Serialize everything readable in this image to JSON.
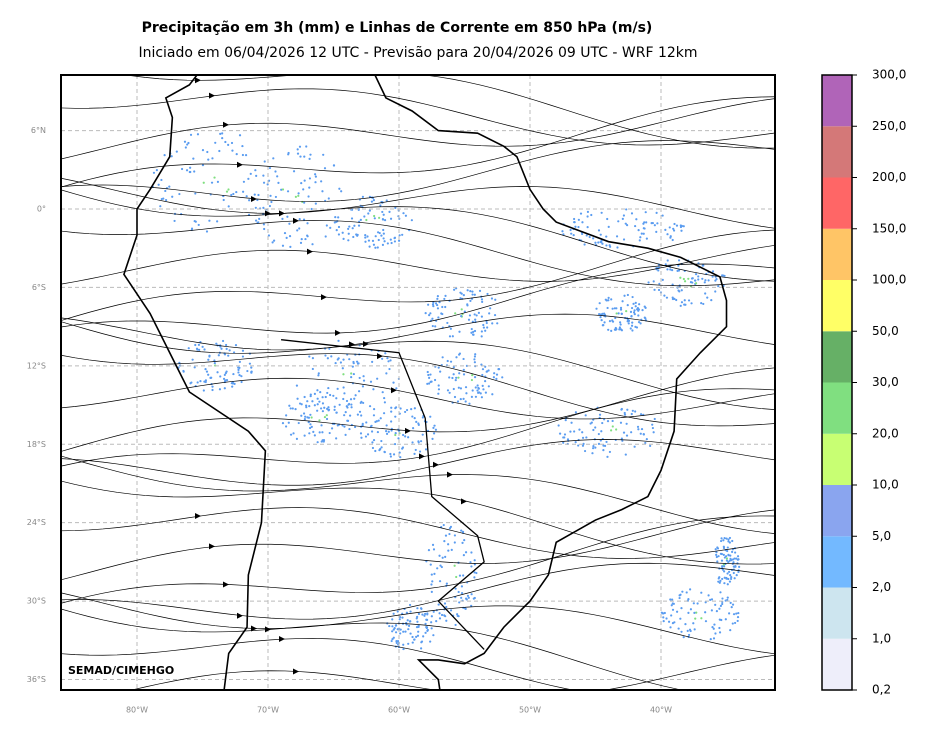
{
  "header": {
    "title": "Precipitação em 3h (mm) e Linhas de Corrente em 850 hPa (m/s)",
    "subtitle": "Iniciado em 06/04/2026 12 UTC - Previsão para 20/04/2026 09 UTC - WRF 12km"
  },
  "map": {
    "lat_labels": [
      "6°N",
      "0°",
      "6°S",
      "12°S",
      "18°S",
      "24°S",
      "30°S",
      "36°S"
    ],
    "lon_labels": [
      "80°W",
      "70°W",
      "60°W",
      "50°W",
      "40°W"
    ],
    "watermark": "SEMAD/CIMEHGO"
  },
  "colorbar": {
    "labels": [
      "0,2",
      "1,0",
      "2,0",
      "5,0",
      "10,0",
      "20,0",
      "30,0",
      "50,0",
      "100,0",
      "150,0",
      "200,0",
      "250,0",
      "300,0"
    ],
    "colors": [
      "#eeeefa",
      "#cde5ef",
      "#73b9ff",
      "#8aa5ef",
      "#c8ff73",
      "#80df80",
      "#66b066",
      "#ffff66",
      "#ffc566",
      "#ff6666",
      "#d47878",
      "#b064b8"
    ]
  }
}
